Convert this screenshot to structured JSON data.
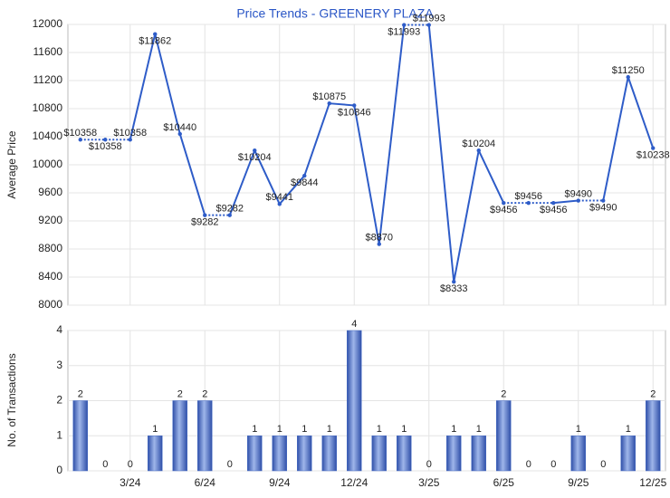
{
  "chart_data": [
    {
      "type": "line",
      "title": "Price Trends - GREENERY PLAZA",
      "y_label": "Average Price",
      "color": "#2e5cc8",
      "values": [
        10358,
        10358,
        10358,
        11862,
        10440,
        9282,
        9282,
        10204,
        9441,
        9844,
        10875,
        10846,
        8870,
        11993,
        11993,
        8333,
        10204,
        9456,
        9456,
        9456,
        9490,
        9490,
        11250,
        10238
      ],
      "value_labels": [
        "$10358",
        "$10358",
        "$10358",
        "$11862",
        "$10440",
        "$9282",
        "$9282",
        "$10204",
        "$9441",
        "$9844",
        "$10875",
        "$10846",
        "$8870",
        "$11993",
        "$11993",
        "$8333",
        "$10204",
        "$9456",
        "$9456",
        "$9456",
        "$9490",
        "$9490",
        "$11250",
        "$10238"
      ],
      "ylim": [
        8000,
        12000
      ],
      "yticks": [
        8000,
        8400,
        8800,
        9200,
        9600,
        10000,
        10400,
        10800,
        11200,
        11600,
        12000
      ],
      "grid": true
    },
    {
      "type": "bar",
      "y_label": "No. of Transactions",
      "color": "#4a6fc7",
      "categories": [
        null,
        null,
        "3/24",
        null,
        null,
        "6/24",
        null,
        null,
        "9/24",
        null,
        null,
        "12/24",
        null,
        null,
        "3/25",
        null,
        null,
        "6/25",
        null,
        null,
        "9/25",
        null,
        null,
        "12/25"
      ],
      "values": [
        2,
        0,
        0,
        1,
        2,
        2,
        0,
        1,
        1,
        1,
        1,
        4,
        1,
        1,
        0,
        1,
        1,
        2,
        0,
        0,
        1,
        0,
        1,
        2
      ],
      "ylim": [
        0,
        4
      ],
      "yticks": [
        0,
        1,
        2,
        3,
        4
      ],
      "grid": true
    }
  ]
}
